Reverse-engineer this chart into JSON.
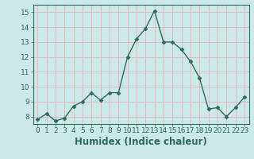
{
  "x": [
    0,
    1,
    2,
    3,
    4,
    5,
    6,
    7,
    8,
    9,
    10,
    11,
    12,
    13,
    14,
    15,
    16,
    17,
    18,
    19,
    20,
    21,
    22,
    23
  ],
  "y": [
    7.8,
    8.2,
    7.7,
    7.9,
    8.7,
    9.0,
    9.6,
    9.1,
    9.6,
    9.6,
    12.0,
    13.2,
    13.9,
    15.1,
    13.0,
    13.0,
    12.5,
    11.7,
    10.6,
    8.5,
    8.6,
    8.0,
    8.6,
    9.3
  ],
  "line_color": "#2e6b5e",
  "marker": "D",
  "markersize": 2.5,
  "linewidth": 1.0,
  "xlabel": "Humidex (Indice chaleur)",
  "ylim": [
    7.5,
    15.5
  ],
  "xlim": [
    -0.5,
    23.5
  ],
  "yticks": [
    8,
    9,
    10,
    11,
    12,
    13,
    14,
    15
  ],
  "xticks": [
    0,
    1,
    2,
    3,
    4,
    5,
    6,
    7,
    8,
    9,
    10,
    11,
    12,
    13,
    14,
    15,
    16,
    17,
    18,
    19,
    20,
    21,
    22,
    23
  ],
  "bg_color": "#cce9e9",
  "grid_color": "#e8b8b8",
  "tick_fontsize": 6.5,
  "xlabel_fontsize": 8.5
}
